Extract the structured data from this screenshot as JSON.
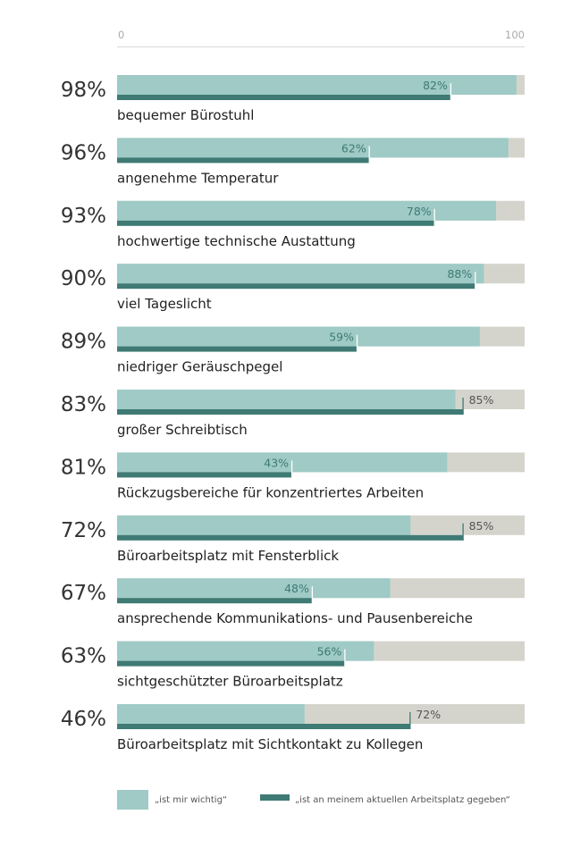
{
  "chart_data": {
    "type": "bar",
    "orientation": "horizontal",
    "xlim": [
      0,
      100
    ],
    "ticks": [
      "0",
      "100"
    ],
    "colors": {
      "important": "#9fcac6",
      "given": "#3f7a74",
      "track": "#d5d4cc",
      "value_on_track": "#555555",
      "value_on_bar": "#3f7a74"
    },
    "series": [
      {
        "name": "„ist mir wichtig“",
        "values": [
          98,
          96,
          93,
          90,
          89,
          83,
          81,
          72,
          67,
          63,
          46
        ]
      },
      {
        "name": "„ist an meinem aktuellen Arbeitsplatz gegeben“",
        "values": [
          82,
          62,
          78,
          88,
          59,
          85,
          43,
          85,
          48,
          56,
          72
        ]
      }
    ],
    "categories": [
      "bequemer Bürostuhl",
      "angenehme Temperatur",
      "hochwertige technische Austattung",
      "viel Tageslicht",
      "niedriger Geräuschpegel",
      "großer Schreibtisch",
      "Rückzugsbereiche für konzentriertes Arbeiten",
      "Büroarbeitsplatz mit Fensterblick",
      "ansprechende Kommunikations- und Pausenbereiche",
      "sichtgeschützter Büroarbeitsplatz",
      "Büroarbeitsplatz mit Sichtkontakt zu Kollegen"
    ],
    "important_labels": [
      "98%",
      "96%",
      "93%",
      "90%",
      "89%",
      "83%",
      "81%",
      "72%",
      "67%",
      "63%",
      "46%"
    ],
    "given_labels": [
      "82%",
      "62%",
      "78%",
      "88%",
      "59%",
      "85%",
      "43%",
      "85%",
      "48%",
      "56%",
      "72%"
    ],
    "legend_position": "bottom"
  }
}
